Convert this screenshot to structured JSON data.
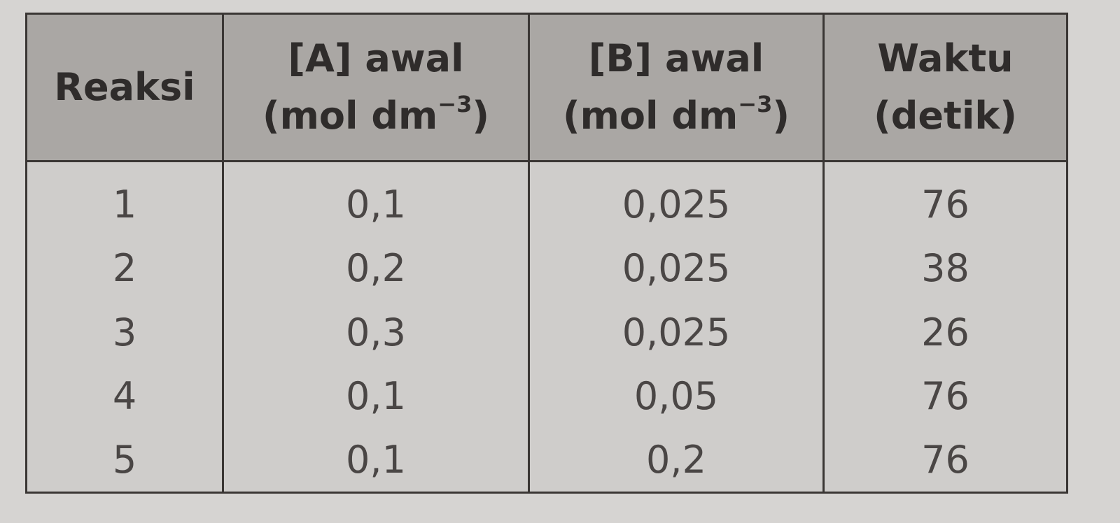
{
  "table": {
    "header": [
      {
        "line1": "Reaksi"
      },
      {
        "line1": "[A] awal",
        "unit": "(mol dm",
        "exponent": "−3",
        "close": ")"
      },
      {
        "line1": "[B] awal",
        "unit": "(mol dm",
        "exponent": "−3",
        "close": ")"
      },
      {
        "line1": "Waktu",
        "unit": "(detik)"
      }
    ],
    "rows": [
      [
        "1",
        "0,1",
        "0,025",
        "76"
      ],
      [
        "2",
        "0,2",
        "0,025",
        "38"
      ],
      [
        "3",
        "0,3",
        "0,025",
        "26"
      ],
      [
        "4",
        "0,1",
        "0,05",
        "76"
      ],
      [
        "5",
        "0,1",
        "0,2",
        "76"
      ]
    ]
  }
}
